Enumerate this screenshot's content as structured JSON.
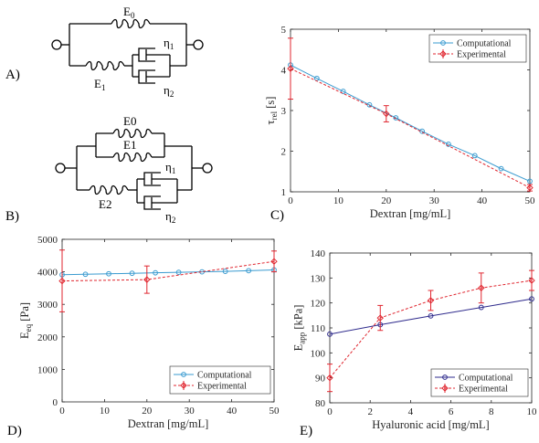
{
  "panels": {
    "A": {
      "label": "A)",
      "elements": {
        "top_spring": "E",
        "top_spring_sub": "0",
        "bottom_spring": "E",
        "bottom_spring_sub": "1",
        "dashpot1": "η",
        "dashpot1_sub": "1",
        "dashpot2": "η",
        "dashpot2_sub": "2"
      }
    },
    "B": {
      "label": "B)",
      "elements": {
        "spring_top": "E0",
        "spring_mid": "E1",
        "spring_bottom": "E2",
        "dashpot1": "η",
        "dashpot1_sub": "1",
        "dashpot2": "η",
        "dashpot2_sub": "2"
      }
    }
  },
  "chart_data": [
    {
      "panel": "C)",
      "type": "line",
      "xlabel": "Dextran [mg/mL]",
      "ylabel": "τ",
      "ylabel_sub": "rel",
      "ylabel_unit": "[s]",
      "xlim": [
        0,
        50
      ],
      "ylim": [
        1,
        5
      ],
      "xticks": [
        "0",
        "10",
        "20",
        "30",
        "40",
        "50"
      ],
      "yticks": [
        "1",
        "2",
        "3",
        "4",
        "5"
      ],
      "legend": "top-right",
      "series": [
        {
          "name": "Computational",
          "color": "#3a9bd0",
          "marker": "circle",
          "dash": "solid",
          "x": [
            0,
            5.5,
            11,
            16.5,
            22,
            27.5,
            33,
            38.5,
            44,
            50
          ],
          "y": [
            4.12,
            3.79,
            3.47,
            3.14,
            2.82,
            2.49,
            2.17,
            1.89,
            1.57,
            1.26
          ]
        },
        {
          "name": "Experimental",
          "color": "#e0262f",
          "marker": "diamond",
          "dash": "dashed",
          "x": [
            0,
            20,
            50
          ],
          "y": [
            4.03,
            2.92,
            1.1
          ],
          "err": [
            0.75,
            0.2,
            0.08
          ]
        }
      ]
    },
    {
      "panel": "D)",
      "type": "line",
      "xlabel": "Dextran [mg/mL]",
      "ylabel": "E",
      "ylabel_sub": "eq",
      "ylabel_unit": "[Pa]",
      "xlim": [
        0,
        50
      ],
      "ylim": [
        0,
        5000
      ],
      "xticks": [
        "0",
        "10",
        "20",
        "30",
        "40",
        "50"
      ],
      "yticks": [
        "0",
        "1000",
        "2000",
        "3000",
        "4000",
        "5000"
      ],
      "legend": "bottom-right",
      "series": [
        {
          "name": "Computational",
          "color": "#3a9bd0",
          "marker": "circle",
          "dash": "solid",
          "x": [
            0,
            5.5,
            11,
            16.5,
            22,
            27.5,
            33,
            38.5,
            44,
            50
          ],
          "y": [
            3910,
            3925,
            3940,
            3955,
            3970,
            3985,
            4000,
            4015,
            4035,
            4060
          ]
        },
        {
          "name": "Experimental",
          "color": "#e0262f",
          "marker": "diamond",
          "dash": "dashed",
          "x": [
            0,
            20,
            50
          ],
          "y": [
            3720,
            3760,
            4320
          ],
          "err": [
            950,
            420,
            320
          ]
        }
      ]
    },
    {
      "panel": "E)",
      "type": "line",
      "xlabel": "Hyaluronic acid [mg/mL]",
      "ylabel": "E",
      "ylabel_sub": "app",
      "ylabel_unit": "[kPa]",
      "xlim": [
        0,
        10
      ],
      "ylim": [
        80,
        140
      ],
      "xticks": [
        "0",
        "2",
        "4",
        "6",
        "8",
        "10"
      ],
      "yticks": [
        "80",
        "90",
        "100",
        "110",
        "120",
        "130",
        "140"
      ],
      "legend": "bottom-right",
      "series": [
        {
          "name": "Computational",
          "color": "#2e2a8c",
          "marker": "circle",
          "dash": "solid",
          "x": [
            0,
            2.5,
            5,
            7.5,
            10
          ],
          "y": [
            107.5,
            111.3,
            114.8,
            118.2,
            121.6
          ]
        },
        {
          "name": "Experimental",
          "color": "#e0262f",
          "marker": "diamond",
          "dash": "dashed",
          "x": [
            0,
            2.5,
            5,
            7.5,
            10
          ],
          "y": [
            90,
            114,
            121,
            126,
            129
          ],
          "err": [
            5.5,
            5,
            4,
            6,
            4
          ]
        }
      ]
    }
  ]
}
